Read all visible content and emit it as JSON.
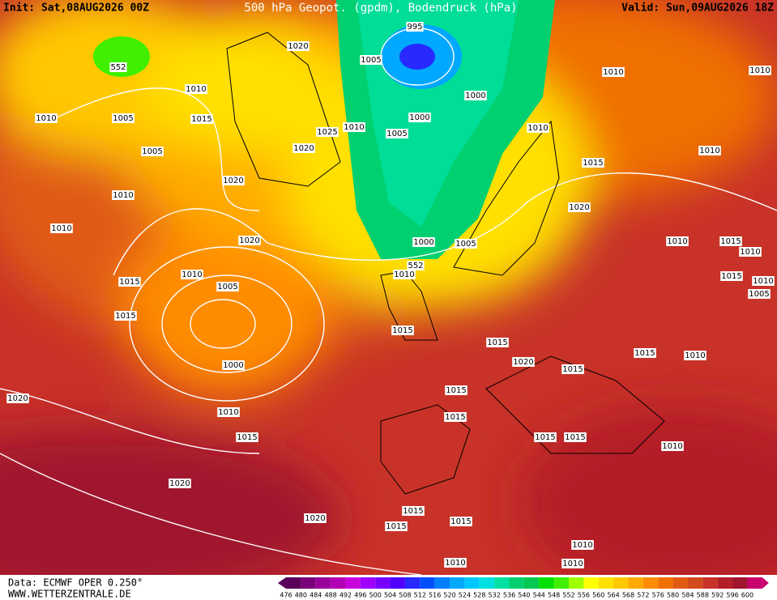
{
  "header": {
    "init": "Init: Sat,08AUG2026 00Z",
    "title": "500 hPa Geopot. (gpdm), Bodendruck (hPa)",
    "valid": "Valid: Sun,09AUG2026 18Z"
  },
  "map": {
    "labels": [
      "552",
      "1010",
      "1010",
      "1005",
      "1015",
      "1005",
      "1020",
      "995",
      "1005",
      "1000",
      "1000",
      "1025",
      "1010",
      "1020",
      "1005",
      "1010",
      "1010",
      "1010",
      "1010",
      "1015",
      "1020",
      "1010",
      "1010",
      "1020",
      "1020",
      "1000",
      "1005",
      "552",
      "1010",
      "1010",
      "1005",
      "1015",
      "1015",
      "1000",
      "1015",
      "1015",
      "1020",
      "1015",
      "1015",
      "1010",
      "1010",
      "1015",
      "1010",
      "1015",
      "1010",
      "1005",
      "1020",
      "1015",
      "1015",
      "1010",
      "1015",
      "1015",
      "1015",
      "1010",
      "1020",
      "1020",
      "1015",
      "1015",
      "1015",
      "1010",
      "1010",
      "1010"
    ]
  },
  "colorbar": {
    "labels": [
      "476",
      "480",
      "484",
      "488",
      "492",
      "496",
      "500",
      "504",
      "508",
      "512",
      "516",
      "520",
      "524",
      "528",
      "532",
      "536",
      "540",
      "544",
      "548",
      "552",
      "556",
      "560",
      "564",
      "568",
      "572",
      "576",
      "580",
      "584",
      "588",
      "592",
      "596",
      "600"
    ],
    "colors": [
      "#5a005a",
      "#7a007a",
      "#9a009a",
      "#b400b4",
      "#c800dc",
      "#a000ff",
      "#7800ff",
      "#5000ff",
      "#2828ff",
      "#0050ff",
      "#0080ff",
      "#00a8ff",
      "#00c8ff",
      "#00e0e0",
      "#00e0a0",
      "#00d070",
      "#00c850",
      "#00e000",
      "#40f000",
      "#a0ff00",
      "#ffff00",
      "#ffe000",
      "#ffc800",
      "#ffaa00",
      "#ff8c00",
      "#f07000",
      "#e05a14",
      "#d24a1e",
      "#c83228",
      "#b41e28",
      "#a0142d",
      "#c8006e"
    ]
  },
  "footer": {
    "source": "Data: ECMWF OPER 0.250°",
    "site": "WWW.WETTERZENTRALE.DE"
  }
}
